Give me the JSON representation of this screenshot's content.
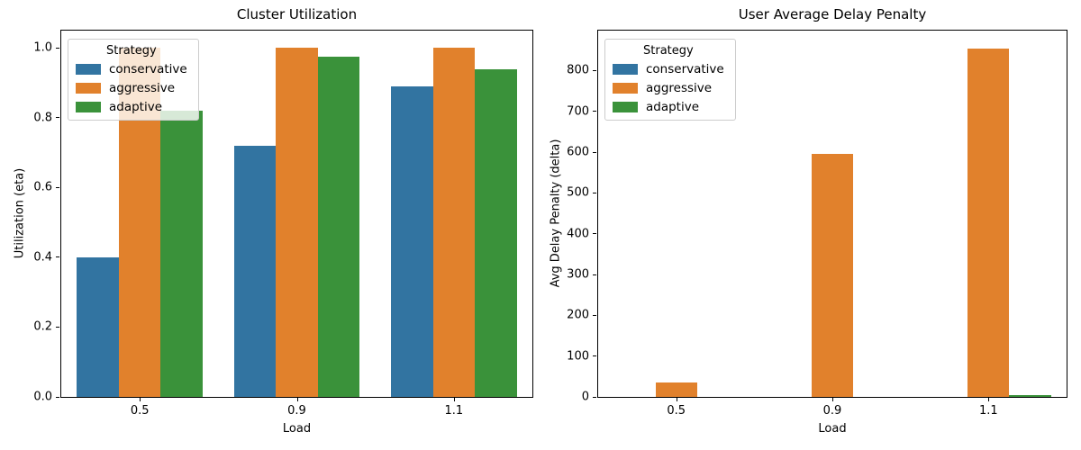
{
  "figure": {
    "background": "#ffffff",
    "text_color": "#000000",
    "spine_color": "#000000"
  },
  "chart_data": [
    {
      "type": "bar",
      "title": "Cluster Utilization",
      "xlabel": "Load",
      "ylabel": "Utilization (eta)",
      "categories": [
        "0.5",
        "0.9",
        "1.1"
      ],
      "series": [
        {
          "name": "conservative",
          "color": "#3274a1",
          "values": [
            0.4,
            0.72,
            0.89
          ]
        },
        {
          "name": "aggressive",
          "color": "#e1812c",
          "values": [
            1.0,
            1.0,
            1.0
          ]
        },
        {
          "name": "adaptive",
          "color": "#3a923a",
          "values": [
            0.82,
            0.975,
            0.94
          ]
        }
      ],
      "ylim": [
        0,
        1.05
      ],
      "yticks": {
        "values": [
          0.0,
          0.2,
          0.4,
          0.6,
          0.8,
          1.0
        ],
        "labels": [
          "0.0",
          "0.2",
          "0.4",
          "0.6",
          "0.8",
          "1.0"
        ]
      },
      "legend": {
        "title": "Strategy",
        "position": "upper left"
      },
      "grid": false,
      "bar_group_width": 0.8
    },
    {
      "type": "bar",
      "title": "User Average Delay Penalty",
      "xlabel": "Load",
      "ylabel": "Avg Delay Penalty (delta)",
      "categories": [
        "0.5",
        "0.9",
        "1.1"
      ],
      "series": [
        {
          "name": "conservative",
          "color": "#3274a1",
          "values": [
            0,
            0,
            0
          ]
        },
        {
          "name": "aggressive",
          "color": "#e1812c",
          "values": [
            35,
            595,
            855
          ]
        },
        {
          "name": "adaptive",
          "color": "#3a923a",
          "values": [
            0,
            0,
            4
          ]
        }
      ],
      "ylim": [
        0,
        898
      ],
      "yticks": {
        "values": [
          0,
          100,
          200,
          300,
          400,
          500,
          600,
          700,
          800
        ],
        "labels": [
          "0",
          "100",
          "200",
          "300",
          "400",
          "500",
          "600",
          "700",
          "800"
        ]
      },
      "legend": {
        "title": "Strategy",
        "position": "upper left"
      },
      "grid": false,
      "bar_group_width": 0.8
    }
  ]
}
